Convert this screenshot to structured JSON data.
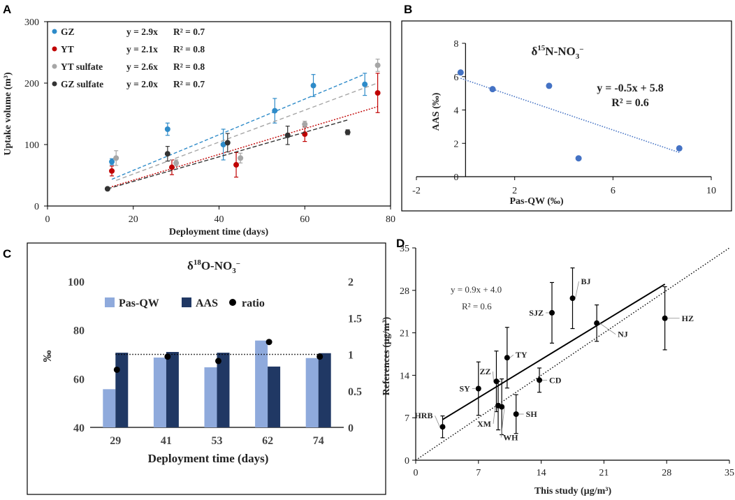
{
  "panel_labels": {
    "a": "A",
    "b": "B",
    "c": "C",
    "d": "D"
  },
  "chart_data": [
    {
      "id": "A",
      "type": "scatter",
      "xlabel": "Deployment time (days)",
      "ylabel": "Uptake volume (m³)",
      "xlim": [
        0,
        80
      ],
      "ylim": [
        0,
        300
      ],
      "xticks": [
        "0",
        "20",
        "40",
        "60",
        "80"
      ],
      "yticks": [
        "0",
        "100",
        "200",
        "300"
      ],
      "series": [
        {
          "name": "GZ",
          "color": "#2e8bc9",
          "equation": "y = 2.9x",
          "r2": "R² = 0.7",
          "points": [
            [
              15,
              72,
              5
            ],
            [
              28,
              125,
              10
            ],
            [
              41,
              100,
              25
            ],
            [
              53,
              155,
              20
            ],
            [
              62,
              196,
              18
            ],
            [
              74,
              198,
              18
            ]
          ],
          "fit_slope": 2.9
        },
        {
          "name": "YT",
          "color": "#c00000",
          "equation": "y = 2.1x",
          "r2": "R² = 0.8",
          "points": [
            [
              15,
              57,
              8
            ],
            [
              29,
              63,
              12
            ],
            [
              44,
              67,
              20
            ],
            [
              60,
              117,
              12
            ],
            [
              77,
              184,
              32
            ]
          ],
          "fit_slope": 2.1
        },
        {
          "name": "YT sulfate",
          "color": "#a6a6a6",
          "equation": "y = 2.6x",
          "r2": "R² = 0.8",
          "points": [
            [
              16,
              78,
              12
            ],
            [
              30,
              70,
              5
            ],
            [
              45,
              78,
              8
            ],
            [
              60,
              133,
              5
            ],
            [
              77,
              229,
              10
            ]
          ],
          "fit_slope": 2.6
        },
        {
          "name": "GZ sulfate",
          "color": "#333333",
          "equation": "y = 2.0x",
          "r2": "R² = 0.7",
          "points": [
            [
              14,
              28,
              0
            ],
            [
              28,
              85,
              12
            ],
            [
              42,
              103,
              15
            ],
            [
              56,
              115,
              15
            ],
            [
              70,
              120,
              4
            ]
          ],
          "fit_slope": 2.0
        }
      ]
    },
    {
      "id": "B",
      "type": "scatter",
      "title": "δ15N-NO3−",
      "title_parts": {
        "delta": "δ",
        "sup": "15",
        "main": "N-NO",
        "sub": "3",
        "sup2": "−"
      },
      "xlabel": "Pas-QW (‰)",
      "ylabel": "AAS (‰)",
      "xlim": [
        -2,
        10
      ],
      "ylim": [
        0,
        8
      ],
      "xticks": [
        "-2",
        "2",
        "6",
        "10"
      ],
      "yticks": [
        "0",
        "2",
        "4",
        "6",
        "8"
      ],
      "points": [
        [
          -0.2,
          6.25
        ],
        [
          1.1,
          5.25
        ],
        [
          3.4,
          5.45
        ],
        [
          4.6,
          1.1
        ],
        [
          8.7,
          1.7
        ]
      ],
      "fit": {
        "slope": -0.5,
        "intercept": 5.8,
        "x_range": [
          -0.2,
          8.7
        ]
      },
      "equation": "y = -0.5x + 5.8",
      "r2": "R² = 0.6",
      "color": "#4472c4"
    },
    {
      "id": "C",
      "type": "bar",
      "title": "δ18O-NO3−",
      "title_parts": {
        "delta": "δ",
        "sup": "18",
        "main": "O-NO",
        "sub": "3",
        "sup2": "−"
      },
      "xlabel": "Deployment time (days)",
      "ylabel": "‰",
      "categories": [
        "29",
        "41",
        "53",
        "62",
        "74"
      ],
      "ylim": [
        40,
        100
      ],
      "y2lim": [
        0,
        2
      ],
      "yticks": [
        "40",
        "60",
        "80",
        "100"
      ],
      "y2ticks": [
        "0",
        "0.5",
        "1",
        "1.5",
        "2"
      ],
      "series": [
        {
          "name": "Pas-QW",
          "color": "#8faadc",
          "values": [
            55.7,
            68.7,
            64.7,
            75.7,
            68.5
          ]
        },
        {
          "name": "AAS",
          "color": "#203864",
          "values": [
            70.7,
            71.0,
            70.7,
            65.0,
            70.5
          ]
        }
      ],
      "ratio": {
        "name": "ratio",
        "values": [
          0.79,
          0.97,
          0.91,
          1.17,
          0.97
        ],
        "reference": 1.0
      }
    },
    {
      "id": "D",
      "type": "scatter",
      "xlabel": "This study (µg/m³)",
      "ylabel": "References (µg/m³)",
      "xlim": [
        0,
        35
      ],
      "ylim": [
        0,
        35
      ],
      "xticks": [
        "0",
        "7",
        "14",
        "21",
        "28",
        "35"
      ],
      "yticks": [
        "0",
        "7",
        "14",
        "21",
        "28",
        "35"
      ],
      "equation": "y = 0.9x + 4.0",
      "r2": "R² = 0.6",
      "fit": {
        "slope": 0.9,
        "intercept": 4.0,
        "x_range": [
          3,
          27.8
        ]
      },
      "points": [
        {
          "label": "HRB",
          "x": 3.0,
          "y": 5.5,
          "err": 1.8
        },
        {
          "label": "SY",
          "x": 7.0,
          "y": 11.8,
          "err": 4.4
        },
        {
          "label": "ZZ",
          "x": 9.0,
          "y": 13.0,
          "err": 5.0
        },
        {
          "label": "XM",
          "x": 9.2,
          "y": 9.0,
          "err": 4.0
        },
        {
          "label": "WH",
          "x": 9.6,
          "y": 8.8,
          "err": 4.6
        },
        {
          "label": "TY",
          "x": 10.2,
          "y": 16.9,
          "err": 5.0
        },
        {
          "label": "SH",
          "x": 11.2,
          "y": 7.6,
          "err": 3.2
        },
        {
          "label": "CD",
          "x": 13.8,
          "y": 13.2,
          "err": 2.0
        },
        {
          "label": "SJZ",
          "x": 15.2,
          "y": 24.3,
          "err": 5.0
        },
        {
          "label": "BJ",
          "x": 17.5,
          "y": 26.7,
          "err": 5.0
        },
        {
          "label": "NJ",
          "x": 20.2,
          "y": 22.6,
          "err": 3.0
        },
        {
          "label": "HZ",
          "x": 27.8,
          "y": 23.4,
          "err": 5.2
        }
      ]
    }
  ]
}
